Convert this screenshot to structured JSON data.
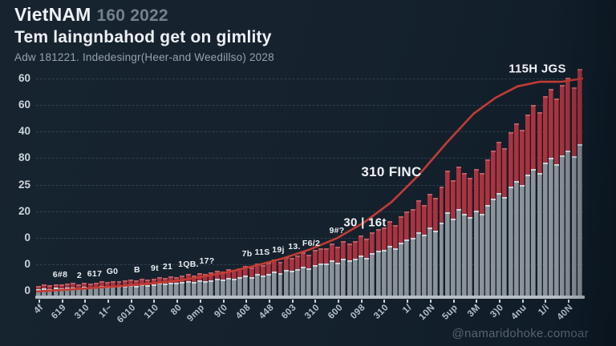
{
  "header": {
    "title_main": "VietNAM",
    "title_sub": "160 2022",
    "subtitle": "Tem laingnbahod get on gimlity",
    "caption": "Adw 181221. Indedesingr(Heer-and Weedillso) 2028"
  },
  "watermark": "@namaridohoke.comoar",
  "chart_data": {
    "type": "bar",
    "title": "Tem laingnbahod get on gimlity",
    "ylim": [
      0,
      100
    ],
    "grid": true,
    "legend": "none",
    "palette": {
      "background": "#15222e",
      "red_bar": "#a93440",
      "gray_bar": "#8a929a",
      "line": "#c43b33",
      "axis": "#b7bec5"
    },
    "y_axis": {
      "labels": [
        "60",
        "60",
        "40",
        "80",
        "25",
        "20",
        "0",
        "0",
        "0"
      ]
    },
    "x_axis": {
      "labels": [
        "4f",
        "619",
        "310",
        "1f~",
        "6010",
        "110",
        "80",
        "9mp",
        "9(0",
        "408",
        "448",
        "603",
        "310",
        "600",
        "098",
        "310",
        "1/",
        "10N",
        "5up",
        "3M",
        "3)0",
        "4nu",
        "1/i",
        "40N"
      ]
    },
    "series": [
      {
        "name": "red-bars",
        "color": "#a93440",
        "values": [
          4.4,
          4.9,
          4.6,
          5.1,
          4.8,
          5.2,
          5.5,
          5.1,
          5.7,
          5.4,
          5.8,
          6.2,
          5.9,
          6.4,
          6.2,
          6.6,
          7.0,
          6.7,
          7.4,
          7.1,
          7.6,
          8.2,
          7.8,
          8.6,
          8.3,
          8.8,
          9.4,
          9.0,
          10.0,
          9.6,
          10.2,
          11.0,
          10.5,
          11.8,
          11.2,
          12.0,
          13.0,
          12.5,
          14.0,
          13.5,
          14.5,
          16.0,
          15.0,
          17.0,
          16.5,
          17.5,
          19.0,
          18.0,
          20.0,
          21.0,
          21.0,
          23.0,
          21.5,
          24.0,
          23.0,
          24.0,
          26.5,
          25.0,
          28.0,
          29.5,
          30.0,
          33.0,
          31.0,
          35.0,
          37.0,
          38.0,
          42.0,
          40.0,
          45.0,
          43.0,
          48.0,
          55.0,
          51.0,
          57.0,
          54.0,
          52.0,
          56.0,
          54.0,
          60.0,
          64.0,
          68.0,
          65.0,
          72.0,
          76.0,
          73.0,
          80.0,
          84.0,
          81.0,
          88.0,
          91.0,
          87.0,
          93.0,
          96.0,
          92.0,
          100.0
        ]
      },
      {
        "name": "gray-bars",
        "color": "#8a929a",
        "values": [
          2.9,
          3.3,
          3.0,
          3.4,
          3.1,
          3.4,
          3.7,
          3.3,
          3.8,
          3.6,
          3.8,
          4.2,
          3.9,
          4.3,
          4.1,
          4.4,
          4.7,
          4.4,
          5.0,
          4.7,
          5.1,
          5.5,
          5.2,
          5.8,
          5.5,
          5.9,
          6.3,
          6.0,
          6.7,
          6.4,
          6.8,
          7.4,
          7.0,
          7.9,
          7.5,
          8.0,
          8.7,
          8.3,
          9.4,
          9.0,
          9.7,
          10.7,
          10.0,
          11.4,
          11.0,
          11.7,
          12.7,
          12.0,
          13.4,
          14.0,
          14.0,
          15.4,
          14.4,
          16.1,
          15.4,
          16.1,
          17.7,
          16.7,
          18.7,
          19.7,
          20.0,
          22.0,
          20.7,
          23.4,
          24.7,
          25.4,
          28.0,
          26.7,
          30.0,
          28.7,
          32.0,
          36.7,
          34.0,
          38.0,
          36.0,
          34.7,
          37.4,
          36.0,
          40.0,
          42.7,
          45.4,
          43.4,
          48.0,
          50.7,
          48.7,
          53.4,
          56.0,
          54.0,
          58.7,
          60.7,
          58.0,
          62.0,
          64.0,
          61.4,
          66.7
        ]
      }
    ],
    "line_series": {
      "name": "trend-line",
      "color": "#c43b33",
      "points": [
        [
          0.0,
          2.5
        ],
        [
          0.05,
          3.2
        ],
        [
          0.1,
          4.0
        ],
        [
          0.15,
          4.8
        ],
        [
          0.2,
          5.8
        ],
        [
          0.25,
          7.0
        ],
        [
          0.3,
          8.8
        ],
        [
          0.35,
          11.0
        ],
        [
          0.4,
          13.8
        ],
        [
          0.45,
          17.0
        ],
        [
          0.5,
          21.0
        ],
        [
          0.55,
          26.0
        ],
        [
          0.6,
          33.0
        ],
        [
          0.65,
          42.0
        ],
        [
          0.7,
          54.0
        ],
        [
          0.75,
          68.0
        ],
        [
          0.8,
          81.0
        ],
        [
          0.84,
          88.0
        ],
        [
          0.88,
          93.0
        ],
        [
          0.92,
          95.0
        ],
        [
          0.96,
          95.0
        ],
        [
          1.0,
          96.5
        ]
      ]
    },
    "bar_labels": [
      {
        "text": "6#8",
        "x": 75,
        "y": 349
      },
      {
        "text": "2",
        "x": 99,
        "y": 350
      },
      {
        "text": "617",
        "x": 118,
        "y": 348
      },
      {
        "text": "G0",
        "x": 140,
        "y": 345
      },
      {
        "text": "B",
        "x": 171,
        "y": 343
      },
      {
        "text": "9t",
        "x": 193,
        "y": 341
      },
      {
        "text": "21",
        "x": 209,
        "y": 339
      },
      {
        "text": "1QB.",
        "x": 235,
        "y": 336
      },
      {
        "text": "17?",
        "x": 258,
        "y": 332
      },
      {
        "text": "7b",
        "x": 308,
        "y": 323
      },
      {
        "text": "11S",
        "x": 327,
        "y": 321
      },
      {
        "text": "19j",
        "x": 347,
        "y": 318
      },
      {
        "text": "13.",
        "x": 367,
        "y": 314
      },
      {
        "text": "F6/2",
        "x": 388,
        "y": 310
      },
      {
        "text": "9#?",
        "x": 420,
        "y": 294
      }
    ],
    "annotations": [
      {
        "text": "30 | 16t",
        "x": 455,
        "y": 278,
        "size": 15
      },
      {
        "text": "310 FINC",
        "x": 488,
        "y": 215,
        "size": 17
      },
      {
        "text": "115H JGS",
        "x": 670,
        "y": 86,
        "size": 15
      }
    ]
  }
}
